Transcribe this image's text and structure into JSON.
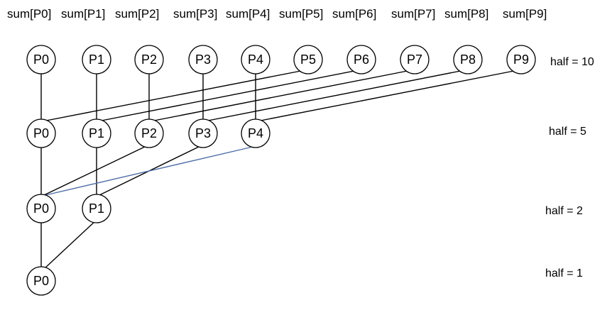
{
  "sum_labels": [
    "sum[P0]",
    "sum[P1]",
    "sum[P2]",
    "sum[P3]",
    "sum[P4]",
    "sum[P5]",
    "sum[P6]",
    "sum[P7]",
    "sum[P8]",
    "sum[P9]"
  ],
  "levels": [
    {
      "half_label": "half = 10",
      "nodes": [
        "P0",
        "P1",
        "P2",
        "P3",
        "P4",
        "P5",
        "P6",
        "P7",
        "P8",
        "P9"
      ]
    },
    {
      "half_label": "half = 5",
      "nodes": [
        "P0",
        "P1",
        "P2",
        "P3",
        "P4"
      ]
    },
    {
      "half_label": "half = 2",
      "nodes": [
        "P0",
        "P1"
      ]
    },
    {
      "half_label": "half = 1",
      "nodes": [
        "P0"
      ]
    }
  ],
  "colors": {
    "line": "#000000",
    "accent_line": "#4f6ea8",
    "node_fill": "#ffffff",
    "node_stroke": "#000000"
  }
}
